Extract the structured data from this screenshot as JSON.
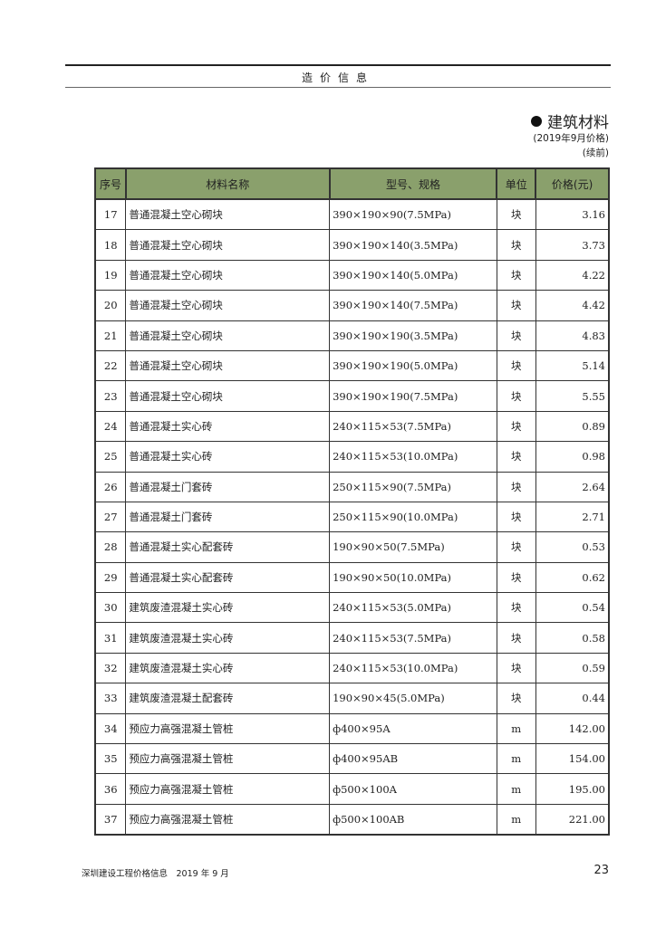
{
  "header": {
    "running_title": "造价信息"
  },
  "section": {
    "title": "建筑材料",
    "subtitle": "(2019年9月价格)",
    "note": "(续前)"
  },
  "table": {
    "columns": [
      "序号",
      "材料名称",
      "型号、规格",
      "单位",
      "价格(元)"
    ],
    "rows": [
      [
        "17",
        "普通混凝土空心砌块",
        "390×190×90(7.5MPa)",
        "块",
        "3.16"
      ],
      [
        "18",
        "普通混凝土空心砌块",
        "390×190×140(3.5MPa)",
        "块",
        "3.73"
      ],
      [
        "19",
        "普通混凝土空心砌块",
        "390×190×140(5.0MPa)",
        "块",
        "4.22"
      ],
      [
        "20",
        "普通混凝土空心砌块",
        "390×190×140(7.5MPa)",
        "块",
        "4.42"
      ],
      [
        "21",
        "普通混凝土空心砌块",
        "390×190×190(3.5MPa)",
        "块",
        "4.83"
      ],
      [
        "22",
        "普通混凝土空心砌块",
        "390×190×190(5.0MPa)",
        "块",
        "5.14"
      ],
      [
        "23",
        "普通混凝土空心砌块",
        "390×190×190(7.5MPa)",
        "块",
        "5.55"
      ],
      [
        "24",
        "普通混凝土实心砖",
        "240×115×53(7.5MPa)",
        "块",
        "0.89"
      ],
      [
        "25",
        "普通混凝土实心砖",
        "240×115×53(10.0MPa)",
        "块",
        "0.98"
      ],
      [
        "26",
        "普通混凝土门套砖",
        "250×115×90(7.5MPa)",
        "块",
        "2.64"
      ],
      [
        "27",
        "普通混凝土门套砖",
        "250×115×90(10.0MPa)",
        "块",
        "2.71"
      ],
      [
        "28",
        "普通混凝土实心配套砖",
        "190×90×50(7.5MPa)",
        "块",
        "0.53"
      ],
      [
        "29",
        "普通混凝土实心配套砖",
        "190×90×50(10.0MPa)",
        "块",
        "0.62"
      ],
      [
        "30",
        "建筑废渣混凝土实心砖",
        "240×115×53(5.0MPa)",
        "块",
        "0.54"
      ],
      [
        "31",
        "建筑废渣混凝土实心砖",
        "240×115×53(7.5MPa)",
        "块",
        "0.58"
      ],
      [
        "32",
        "建筑废渣混凝土实心砖",
        "240×115×53(10.0MPa)",
        "块",
        "0.59"
      ],
      [
        "33",
        "建筑废渣混凝土配套砖",
        "190×90×45(5.0MPa)",
        "块",
        "0.44"
      ],
      [
        "34",
        "预应力高强混凝土管桩",
        "ф400×95A",
        "m",
        "142.00"
      ],
      [
        "35",
        "预应力高强混凝土管桩",
        "ф400×95AB",
        "m",
        "154.00"
      ],
      [
        "36",
        "预应力高强混凝土管桩",
        "ф500×100A",
        "m",
        "195.00"
      ],
      [
        "37",
        "预应力高强混凝土管桩",
        "ф500×100AB",
        "m",
        "221.00"
      ]
    ]
  },
  "footer": {
    "publication": "深圳建设工程价格信息　2019 年 9 月",
    "page_number": "23"
  },
  "colors": {
    "header_fill": "#8aa06c"
  }
}
